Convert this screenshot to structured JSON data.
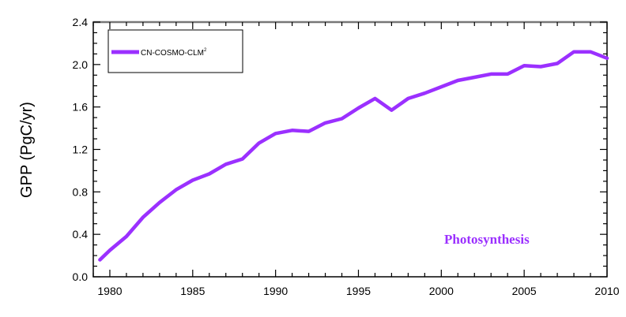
{
  "chart_data": {
    "type": "line",
    "title": "",
    "xlabel": "",
    "ylabel": "GPP (PgC/yr)",
    "xlim": [
      1979,
      2010
    ],
    "ylim": [
      0.0,
      2.4
    ],
    "xticks": [
      1980,
      1985,
      1990,
      1995,
      2000,
      2005,
      2010
    ],
    "xtick_labels": [
      "1980",
      "1985",
      "1990",
      "1995",
      "2000",
      "2005",
      "2010"
    ],
    "yticks": [
      0.0,
      0.4,
      0.8,
      1.2,
      1.6,
      2.0,
      2.4
    ],
    "ytick_labels": [
      "0.0",
      "0.4",
      "0.8",
      "1.2",
      "1.6",
      "2.0",
      "2.4"
    ],
    "grid": false,
    "legend_position": "top-left",
    "annotation": {
      "text": "Photosynthesis",
      "color": "#9b30ff"
    },
    "series": [
      {
        "name": "CN-COSMO-CLM",
        "name_superscript": "2",
        "color": "#9b30ff",
        "x": [
          1979.4,
          1980,
          1981,
          1982,
          1983,
          1984,
          1985,
          1986,
          1987,
          1988,
          1989,
          1990,
          1991,
          1992,
          1993,
          1994,
          1995,
          1996,
          1997,
          1998,
          1999,
          2000,
          2001,
          2002,
          2003,
          2004,
          2005,
          2006,
          2007,
          2008,
          2009,
          2010
        ],
        "y": [
          0.16,
          0.25,
          0.38,
          0.56,
          0.7,
          0.82,
          0.91,
          0.97,
          1.06,
          1.11,
          1.26,
          1.35,
          1.38,
          1.37,
          1.45,
          1.49,
          1.59,
          1.68,
          1.57,
          1.68,
          1.73,
          1.79,
          1.85,
          1.88,
          1.91,
          1.91,
          1.99,
          1.98,
          2.01,
          2.12,
          2.12,
          2.06
        ]
      }
    ]
  }
}
